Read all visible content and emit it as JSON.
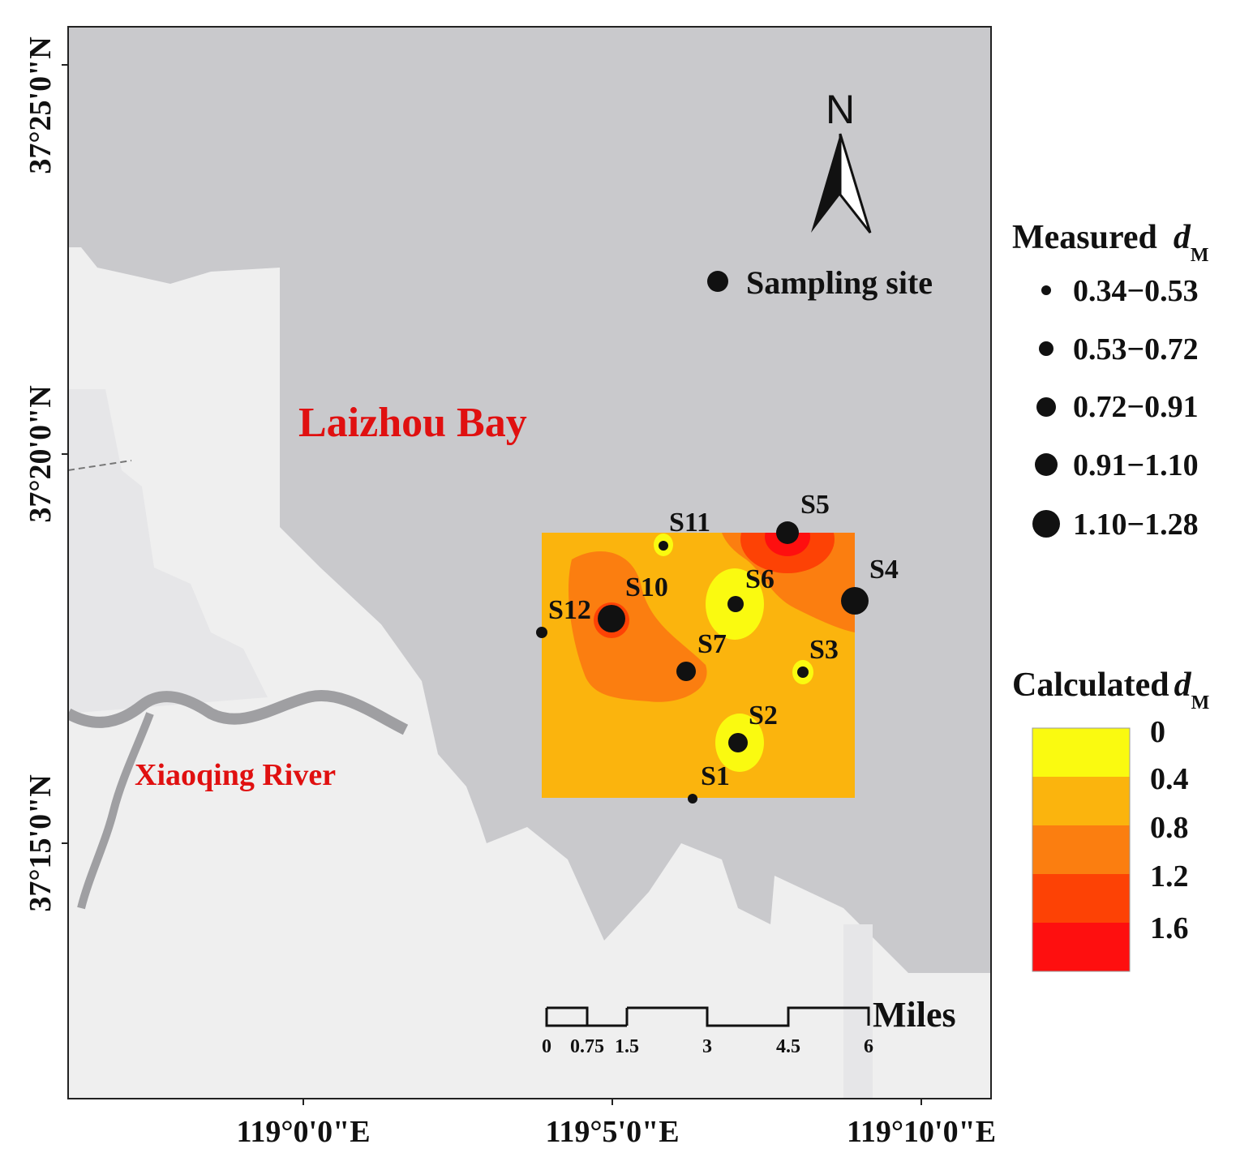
{
  "colors": {
    "sea": "#c9c9cc",
    "land": "#efefef",
    "river": "#9f9fa2",
    "place_label": "#e01010",
    "zone_0": "#fafa10",
    "zone_04": "#fbb40d",
    "zone_08": "#fb7e10",
    "zone_12": "#fd4205",
    "zone_16": "#fe0f0f"
  },
  "map": {
    "north_label": "N",
    "bay_label": "Laizhou Bay",
    "river_label": "Xiaoqing River",
    "sampling_label": "Sampling site",
    "y_ticks": [
      "37°25'0\"N",
      "37°20'0\"N",
      "37°15'0\"N"
    ],
    "x_ticks": [
      "119°0'0\"E",
      "119°5'0\"E",
      "119°10'0\"E"
    ],
    "scale_unit": "Miles",
    "scale_ticks": [
      "0",
      "0.75",
      "1.5",
      "3",
      "4.5",
      "6"
    ]
  },
  "sites": [
    {
      "name": "S1"
    },
    {
      "name": "S2"
    },
    {
      "name": "S3"
    },
    {
      "name": "S4"
    },
    {
      "name": "S5"
    },
    {
      "name": "S6"
    },
    {
      "name": "S7"
    },
    {
      "name": "S10"
    },
    {
      "name": "S11"
    },
    {
      "name": "S12"
    }
  ],
  "legend_measured": {
    "title_main": "Measured",
    "title_var": "d",
    "title_sub": "M",
    "classes": [
      "0.34−0.53",
      "0.53−0.72",
      "0.72−0.91",
      "0.91−1.10",
      "1.10−1.28"
    ]
  },
  "legend_calculated": {
    "title_main": "Calculated",
    "title_var": "d",
    "title_sub": "M",
    "breaks": [
      "0",
      "0.4",
      "0.8",
      "1.2",
      "1.6"
    ]
  }
}
